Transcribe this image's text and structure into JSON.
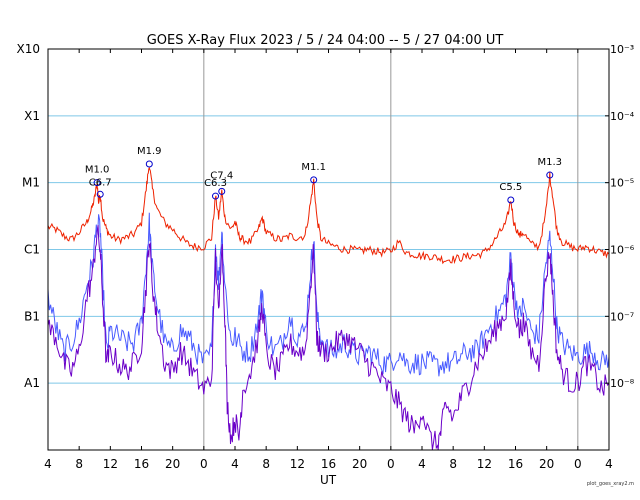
{
  "chart_data": {
    "type": "line",
    "title": "GOES X-Ray Flux   2023  /  5 / 24   04:00 --  5 / 27   04:00   UT",
    "xlabel": "UT",
    "x_unit": "hours since 2023-05-24 04:00 UT",
    "xlim": [
      0,
      72
    ],
    "x_tick_labels": [
      "4",
      "8",
      "12",
      "16",
      "20",
      "0",
      "4",
      "8",
      "12",
      "16",
      "20",
      "0",
      "4",
      "8",
      "12",
      "16",
      "20",
      "0",
      "4"
    ],
    "day_boundaries_hours": [
      20,
      44,
      68
    ],
    "yscale": "log",
    "ylim": [
      1e-09,
      0.001
    ],
    "left_axis_labels": [
      {
        "label": "A1",
        "value": 1e-08
      },
      {
        "label": "B1",
        "value": 1e-07
      },
      {
        "label": "C1",
        "value": 1e-06
      },
      {
        "label": "M1",
        "value": 1e-05
      },
      {
        "label": "X1",
        "value": 0.0001
      },
      {
        "label": "X10",
        "value": 0.001
      }
    ],
    "right_axis_labels": [
      {
        "label": "10⁻⁸",
        "value": 1e-08
      },
      {
        "label": "10⁻⁷",
        "value": 1e-07
      },
      {
        "label": "10⁻⁶",
        "value": 1e-06
      },
      {
        "label": "10⁻⁵",
        "value": 1e-05
      },
      {
        "label": "10⁻⁴",
        "value": 0.0001
      },
      {
        "label": "10⁻³",
        "value": 0.001
      }
    ],
    "grid": "horizontal lines at each decade, vertical lines at day boundaries",
    "flares": [
      {
        "label": "M1.0",
        "time": 6.3,
        "flux": 1e-05
      },
      {
        "label": "C6.7",
        "time": 6.7,
        "flux": 6.7e-06
      },
      {
        "label": "M1.9",
        "time": 13.0,
        "flux": 1.9e-05
      },
      {
        "label": "C6.3",
        "time": 21.5,
        "flux": 6.3e-06
      },
      {
        "label": "C7.4",
        "time": 22.3,
        "flux": 7.4e-06
      },
      {
        "label": "M1.1",
        "time": 34.1,
        "flux": 1.1e-05
      },
      {
        "label": "C5.5",
        "time": 59.4,
        "flux": 5.5e-06
      },
      {
        "label": "M1.3",
        "time": 64.4,
        "flux": 1.3e-05
      }
    ],
    "series": [
      {
        "color": "#ee2200",
        "points": [
          [
            0,
            2.2e-06
          ],
          [
            1,
            2e-06
          ],
          [
            2,
            1.6e-06
          ],
          [
            3,
            1.4e-06
          ],
          [
            4,
            1.8e-06
          ],
          [
            5,
            2.6e-06
          ],
          [
            5.6,
            4e-06
          ],
          [
            6,
            6e-06
          ],
          [
            6.3,
            1e-05
          ],
          [
            6.5,
            5e-06
          ],
          [
            6.7,
            6.7e-06
          ],
          [
            7,
            3e-06
          ],
          [
            7.5,
            2e-06
          ],
          [
            8,
            1.6e-06
          ],
          [
            9,
            1.4e-06
          ],
          [
            10,
            1.5e-06
          ],
          [
            11,
            1.7e-06
          ],
          [
            12,
            2.5e-06
          ],
          [
            12.6,
            8e-06
          ],
          [
            13,
            1.9e-05
          ],
          [
            13.4,
            8e-06
          ],
          [
            14,
            4e-06
          ],
          [
            15,
            2.5e-06
          ],
          [
            16,
            2e-06
          ],
          [
            17,
            1.5e-06
          ],
          [
            18,
            1.2e-06
          ],
          [
            19,
            1.1e-06
          ],
          [
            20,
            1.1e-06
          ],
          [
            21,
            1.5e-06
          ],
          [
            21.5,
            6.3e-06
          ],
          [
            21.9,
            3e-06
          ],
          [
            22.3,
            7.4e-06
          ],
          [
            22.7,
            3e-06
          ],
          [
            23.5,
            2e-06
          ],
          [
            24,
            2.6e-06
          ],
          [
            24.5,
            1.6e-06
          ],
          [
            25,
            1.4e-06
          ],
          [
            26,
            1.3e-06
          ],
          [
            27,
            2e-06
          ],
          [
            27.5,
            3e-06
          ],
          [
            28,
            1.8e-06
          ],
          [
            29,
            1.5e-06
          ],
          [
            30,
            1.4e-06
          ],
          [
            31,
            1.6e-06
          ],
          [
            32,
            1.5e-06
          ],
          [
            33,
            1.6e-06
          ],
          [
            33.7,
            5e-06
          ],
          [
            34.1,
            1.1e-05
          ],
          [
            34.5,
            3e-06
          ],
          [
            35,
            1.5e-06
          ],
          [
            36,
            1.2e-06
          ],
          [
            37,
            1.1e-06
          ],
          [
            38,
            1e-06
          ],
          [
            39,
            1e-06
          ],
          [
            40,
            9.5e-07
          ],
          [
            41,
            1e-06
          ],
          [
            42,
            9.5e-07
          ],
          [
            43,
            9e-07
          ],
          [
            44,
            9.5e-07
          ],
          [
            45,
            1.3e-06
          ],
          [
            46,
            9e-07
          ],
          [
            47,
            8.5e-07
          ],
          [
            48,
            8e-07
          ],
          [
            49,
            8e-07
          ],
          [
            50,
            7.5e-07
          ],
          [
            51,
            7e-07
          ],
          [
            52,
            7.2e-07
          ],
          [
            53,
            7.5e-07
          ],
          [
            54,
            8e-07
          ],
          [
            55,
            8.2e-07
          ],
          [
            56,
            9e-07
          ],
          [
            57,
            1.2e-06
          ],
          [
            58,
            1.8e-06
          ],
          [
            58.8,
            2.5e-06
          ],
          [
            59.4,
            5.5e-06
          ],
          [
            59.8,
            2.5e-06
          ],
          [
            60.5,
            1.6e-06
          ],
          [
            61,
            1.8e-06
          ],
          [
            62,
            1.2e-06
          ],
          [
            63,
            1.1e-06
          ],
          [
            63.8,
            3e-06
          ],
          [
            64.4,
            1.3e-05
          ],
          [
            64.8,
            6e-06
          ],
          [
            65.3,
            2e-06
          ],
          [
            66,
            1.3e-06
          ],
          [
            67,
            1.1e-06
          ],
          [
            68,
            1e-06
          ],
          [
            69,
            1.1e-06
          ],
          [
            70,
            1e-06
          ],
          [
            71,
            9e-07
          ],
          [
            72,
            8.5e-07
          ]
        ]
      },
      {
        "color": "#4a5cff",
        "points": [
          [
            0,
            2e-07
          ],
          [
            1,
            7e-08
          ],
          [
            2,
            3e-08
          ],
          [
            3,
            4e-08
          ],
          [
            4,
            8e-08
          ],
          [
            5,
            3e-07
          ],
          [
            5.7,
            6e-07
          ],
          [
            6.3,
            2.5e-06
          ],
          [
            6.7,
            2e-06
          ],
          [
            7,
            4e-07
          ],
          [
            7.5,
            3e-08
          ],
          [
            8,
            6e-08
          ],
          [
            9,
            5e-08
          ],
          [
            10,
            4e-08
          ],
          [
            11,
            4e-08
          ],
          [
            12,
            8e-08
          ],
          [
            12.6,
            6e-07
          ],
          [
            13,
            2.5e-06
          ],
          [
            13.4,
            5e-07
          ],
          [
            14,
            1.5e-07
          ],
          [
            15,
            4e-08
          ],
          [
            16,
            3e-08
          ],
          [
            17,
            6e-08
          ],
          [
            18,
            5e-08
          ],
          [
            19,
            3e-08
          ],
          [
            20,
            2e-08
          ],
          [
            21,
            3e-08
          ],
          [
            21.5,
            1.2e-06
          ],
          [
            21.9,
            3e-07
          ],
          [
            22.3,
            2e-06
          ],
          [
            22.7,
            3e-07
          ],
          [
            23.5,
            4e-08
          ],
          [
            24,
            5e-08
          ],
          [
            25,
            3e-08
          ],
          [
            26,
            3e-08
          ],
          [
            27,
            1e-07
          ],
          [
            27.5,
            2.5e-07
          ],
          [
            28,
            6e-08
          ],
          [
            29,
            3e-08
          ],
          [
            30,
            4e-08
          ],
          [
            31,
            1e-07
          ],
          [
            32,
            5e-08
          ],
          [
            33,
            6e-08
          ],
          [
            33.7,
            5e-07
          ],
          [
            34.1,
            1.5e-06
          ],
          [
            34.5,
            1e-07
          ],
          [
            35,
            5e-08
          ],
          [
            36,
            3e-08
          ],
          [
            37,
            3e-08
          ],
          [
            38,
            4e-08
          ],
          [
            39,
            3e-08
          ],
          [
            40,
            2.5e-08
          ],
          [
            41,
            3e-08
          ],
          [
            42,
            2.5e-08
          ],
          [
            43,
            2e-08
          ],
          [
            44,
            2e-08
          ],
          [
            45,
            3e-08
          ],
          [
            46,
            2e-08
          ],
          [
            47,
            2e-08
          ],
          [
            48,
            2e-08
          ],
          [
            49,
            2e-08
          ],
          [
            50,
            1.8e-08
          ],
          [
            51,
            2e-08
          ],
          [
            52,
            2e-08
          ],
          [
            53,
            2.5e-08
          ],
          [
            54,
            3e-08
          ],
          [
            55,
            3e-08
          ],
          [
            56,
            5e-08
          ],
          [
            57,
            8e-08
          ],
          [
            58,
            1.2e-07
          ],
          [
            58.8,
            2e-07
          ],
          [
            59.4,
            8e-07
          ],
          [
            59.8,
            2.5e-07
          ],
          [
            60.5,
            1e-07
          ],
          [
            61,
            1.5e-07
          ],
          [
            62,
            6e-08
          ],
          [
            63,
            5e-08
          ],
          [
            63.8,
            5e-07
          ],
          [
            64.4,
            1.5e-06
          ],
          [
            64.8,
            5e-07
          ],
          [
            65.3,
            7e-08
          ],
          [
            66,
            4e-08
          ],
          [
            67,
            3e-08
          ],
          [
            68,
            2.5e-08
          ],
          [
            69,
            3e-08
          ],
          [
            70,
            3e-08
          ],
          [
            71,
            2e-08
          ],
          [
            72,
            2.5e-08
          ]
        ]
      },
      {
        "color": "#6a00c8",
        "points": [
          [
            0,
            7e-08
          ],
          [
            1,
            5e-08
          ],
          [
            2,
            2e-08
          ],
          [
            3,
            1.5e-08
          ],
          [
            4,
            3e-08
          ],
          [
            5,
            2e-07
          ],
          [
            5.7,
            4e-07
          ],
          [
            6.3,
            2e-06
          ],
          [
            6.7,
            1e-06
          ],
          [
            7,
            2e-07
          ],
          [
            7.5,
            2e-08
          ],
          [
            8,
            3e-08
          ],
          [
            9,
            2e-08
          ],
          [
            10,
            1.5e-08
          ],
          [
            11,
            2e-08
          ],
          [
            12,
            4e-08
          ],
          [
            12.6,
            3e-07
          ],
          [
            13,
            1.5e-06
          ],
          [
            13.4,
            3e-07
          ],
          [
            14,
            8e-08
          ],
          [
            15,
            2e-08
          ],
          [
            16,
            1.5e-08
          ],
          [
            17,
            3e-08
          ],
          [
            18,
            2e-08
          ],
          [
            19,
            1.2e-08
          ],
          [
            20,
            8e-09
          ],
          [
            21,
            1.2e-08
          ],
          [
            21.5,
            8e-07
          ],
          [
            21.9,
            1e-07
          ],
          [
            22.3,
            1.5e-06
          ],
          [
            22.7,
            1e-07
          ],
          [
            23,
            5e-09
          ],
          [
            23.5,
            1.5e-09
          ],
          [
            24,
            3e-09
          ],
          [
            24.5,
            1.5e-09
          ],
          [
            25,
            8e-09
          ],
          [
            26,
            1.5e-08
          ],
          [
            27,
            5e-08
          ],
          [
            27.5,
            1.5e-07
          ],
          [
            28,
            3e-08
          ],
          [
            29,
            1.5e-08
          ],
          [
            30,
            2e-08
          ],
          [
            31,
            4e-08
          ],
          [
            32,
            3e-08
          ],
          [
            33,
            3e-08
          ],
          [
            33.7,
            3e-07
          ],
          [
            34.1,
            1e-06
          ],
          [
            34.5,
            5e-08
          ],
          [
            35,
            3e-08
          ],
          [
            36,
            3e-08
          ],
          [
            37,
            4e-08
          ],
          [
            38,
            5e-08
          ],
          [
            39,
            4e-08
          ],
          [
            40,
            3e-08
          ],
          [
            41,
            2e-08
          ],
          [
            42,
            1.5e-08
          ],
          [
            43,
            1e-08
          ],
          [
            44,
            8e-09
          ],
          [
            45,
            5e-09
          ],
          [
            46,
            3e-09
          ],
          [
            47,
            2e-09
          ],
          [
            48,
            4e-09
          ],
          [
            49,
            1.5e-09
          ],
          [
            50,
            1.2e-09
          ],
          [
            50.5,
            2e-09
          ],
          [
            51,
            5e-09
          ],
          [
            52,
            3e-09
          ],
          [
            53,
            6e-09
          ],
          [
            54,
            1e-08
          ],
          [
            55,
            2e-08
          ],
          [
            56,
            3e-08
          ],
          [
            57,
            5e-08
          ],
          [
            58,
            8e-08
          ],
          [
            58.8,
            1.2e-07
          ],
          [
            59.4,
            5e-07
          ],
          [
            59.8,
            1.5e-07
          ],
          [
            60.5,
            6e-08
          ],
          [
            61,
            8e-08
          ],
          [
            62,
            3e-08
          ],
          [
            63,
            2e-08
          ],
          [
            63.8,
            3e-07
          ],
          [
            64.4,
            1e-06
          ],
          [
            64.8,
            2e-07
          ],
          [
            65.3,
            3e-08
          ],
          [
            66,
            1.5e-08
          ],
          [
            67,
            1e-08
          ],
          [
            68,
            1e-08
          ],
          [
            69,
            2e-08
          ],
          [
            70,
            1.5e-08
          ],
          [
            71,
            8e-09
          ],
          [
            72,
            1e-08
          ]
        ]
      }
    ],
    "credit": "plot_goes_xray2.m"
  }
}
